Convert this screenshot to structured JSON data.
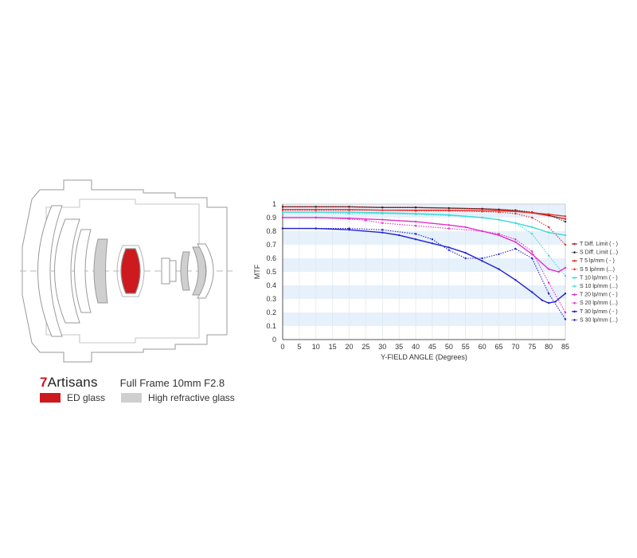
{
  "brand": {
    "logo_mark": "7",
    "logo_text": "Artisans",
    "product": "Full Frame 10mm F2.8"
  },
  "lens_legend": [
    {
      "label": "ED glass",
      "color": "#cc1a1f"
    },
    {
      "label": "High refractive glass",
      "color": "#cfcfcf"
    }
  ],
  "chart_data": {
    "type": "line",
    "title": "",
    "xlabel": "Y-FIELD ANGLE (Degrees)",
    "ylabel": "MTF",
    "xlim": [
      0,
      85
    ],
    "ylim": [
      0,
      1
    ],
    "x_ticks": [
      "0",
      "5",
      "10",
      "15",
      "20",
      "25",
      "30",
      "35",
      "40",
      "45",
      "50",
      "55",
      "60",
      "65",
      "70",
      "75",
      "80",
      "85"
    ],
    "y_ticks": [
      "0",
      "0.1",
      "0.2",
      "0.3",
      "0.4",
      "0.5",
      "0.6",
      "0.7",
      "0.8",
      "0.9",
      "1"
    ],
    "grid": "alternating horizontal bands",
    "legend_position": "right",
    "series": [
      {
        "name": "T Diff. Limit ( - )",
        "color": "#c41e1e",
        "style": "solid",
        "x": [
          0,
          10,
          20,
          30,
          40,
          50,
          60,
          65,
          70,
          75,
          80,
          85
        ],
        "y": [
          0.98,
          0.98,
          0.98,
          0.975,
          0.975,
          0.97,
          0.965,
          0.96,
          0.95,
          0.935,
          0.915,
          0.89
        ]
      },
      {
        "name": "S Diff. Limit (...)",
        "color": "#2b2b2b",
        "style": "dotted",
        "x": [
          0,
          10,
          20,
          30,
          40,
          50,
          60,
          65,
          70,
          75,
          80,
          85
        ],
        "y": [
          0.98,
          0.98,
          0.98,
          0.975,
          0.975,
          0.97,
          0.965,
          0.96,
          0.955,
          0.94,
          0.92,
          0.87
        ]
      },
      {
        "name": "T 5 lp/mm ( - )",
        "color": "#e8322a",
        "style": "solid",
        "x": [
          0,
          10,
          20,
          30,
          40,
          50,
          60,
          65,
          70,
          75,
          80,
          85
        ],
        "y": [
          0.96,
          0.96,
          0.96,
          0.955,
          0.955,
          0.955,
          0.95,
          0.95,
          0.945,
          0.935,
          0.925,
          0.91
        ]
      },
      {
        "name": "S 5 lp/mm (...)",
        "color": "#e8322a",
        "style": "dotted",
        "x": [
          0,
          10,
          20,
          30,
          40,
          50,
          60,
          65,
          70,
          75,
          80,
          85
        ],
        "y": [
          0.955,
          0.955,
          0.955,
          0.955,
          0.95,
          0.95,
          0.945,
          0.94,
          0.93,
          0.9,
          0.83,
          0.7
        ]
      },
      {
        "name": "T 10 lp/mm ( - )",
        "color": "#40d8d8",
        "style": "solid",
        "x": [
          0,
          10,
          20,
          30,
          40,
          50,
          60,
          65,
          70,
          75,
          80,
          85
        ],
        "y": [
          0.94,
          0.94,
          0.94,
          0.935,
          0.93,
          0.92,
          0.9,
          0.885,
          0.86,
          0.83,
          0.79,
          0.77
        ]
      },
      {
        "name": "S 10 lp/mm (...)",
        "color": "#40d8d8",
        "style": "dotted",
        "x": [
          0,
          10,
          20,
          30,
          40,
          50,
          60,
          65,
          70,
          75,
          80,
          85
        ],
        "y": [
          0.94,
          0.94,
          0.93,
          0.93,
          0.925,
          0.915,
          0.9,
          0.885,
          0.86,
          0.78,
          0.62,
          0.47
        ]
      },
      {
        "name": "T 20 lp/mm ( - )",
        "color": "#e030c8",
        "style": "solid",
        "x": [
          0,
          10,
          20,
          30,
          40,
          50,
          55,
          60,
          65,
          70,
          75,
          80,
          83,
          85
        ],
        "y": [
          0.9,
          0.9,
          0.895,
          0.885,
          0.87,
          0.845,
          0.83,
          0.8,
          0.77,
          0.72,
          0.63,
          0.52,
          0.5,
          0.53
        ]
      },
      {
        "name": "S 20 lp/mm (...)",
        "color": "#e030c8",
        "style": "dotted",
        "x": [
          0,
          10,
          20,
          25,
          30,
          40,
          50,
          60,
          65,
          70,
          75,
          80,
          85
        ],
        "y": [
          0.9,
          0.9,
          0.89,
          0.88,
          0.86,
          0.84,
          0.82,
          0.8,
          0.78,
          0.74,
          0.65,
          0.42,
          0.2
        ]
      },
      {
        "name": "T 30 lp/mm ( - )",
        "color": "#2020d0",
        "style": "solid",
        "x": [
          0,
          10,
          20,
          30,
          35,
          40,
          45,
          50,
          55,
          60,
          65,
          70,
          75,
          78,
          80,
          82,
          85
        ],
        "y": [
          0.82,
          0.82,
          0.81,
          0.79,
          0.77,
          0.74,
          0.71,
          0.68,
          0.64,
          0.58,
          0.52,
          0.44,
          0.35,
          0.29,
          0.27,
          0.28,
          0.34
        ]
      },
      {
        "name": "S 30 lp/mm (...)",
        "color": "#2020d0",
        "style": "dotted",
        "x": [
          0,
          10,
          20,
          30,
          40,
          45,
          50,
          55,
          60,
          65,
          70,
          75,
          80,
          85
        ],
        "y": [
          0.82,
          0.82,
          0.82,
          0.81,
          0.78,
          0.74,
          0.66,
          0.6,
          0.6,
          0.63,
          0.67,
          0.6,
          0.34,
          0.15
        ]
      }
    ]
  }
}
